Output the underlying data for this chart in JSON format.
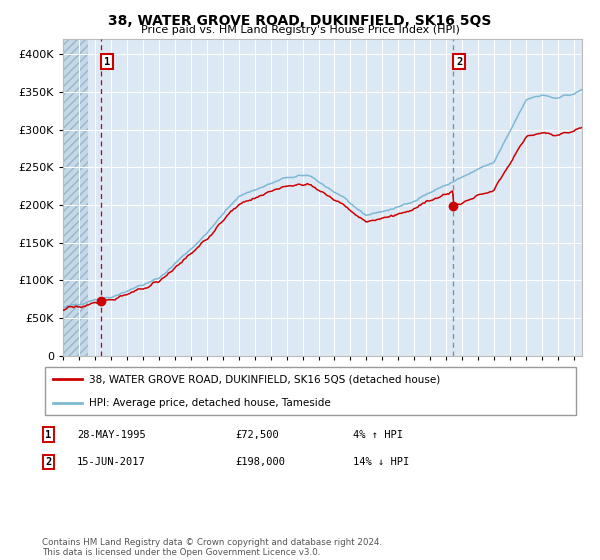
{
  "title": "38, WATER GROVE ROAD, DUKINFIELD, SK16 5QS",
  "subtitle": "Price paid vs. HM Land Registry's House Price Index (HPI)",
  "legend_line1": "38, WATER GROVE ROAD, DUKINFIELD, SK16 5QS (detached house)",
  "legend_line2": "HPI: Average price, detached house, Tameside",
  "note1_label": "1",
  "note1_date": "28-MAY-1995",
  "note1_price": "£72,500",
  "note1_hpi": "4% ↑ HPI",
  "note2_label": "2",
  "note2_date": "15-JUN-2017",
  "note2_price": "£198,000",
  "note2_hpi": "14% ↓ HPI",
  "footer": "Contains HM Land Registry data © Crown copyright and database right 2024.\nThis data is licensed under the Open Government Licence v3.0.",
  "purchase1_year": 1995.41,
  "purchase1_price": 72500,
  "purchase2_year": 2017.45,
  "purchase2_price": 198000,
  "hpi_color": "#7eb8d4",
  "property_color": "#cc0000",
  "vline1_color": "#cc0000",
  "vline2_color": "#888888",
  "plot_bg": "#dce9f5",
  "grid_color": "#ffffff",
  "ylim": [
    0,
    420000
  ],
  "xlim_start": 1993,
  "xlim_end": 2025.5
}
